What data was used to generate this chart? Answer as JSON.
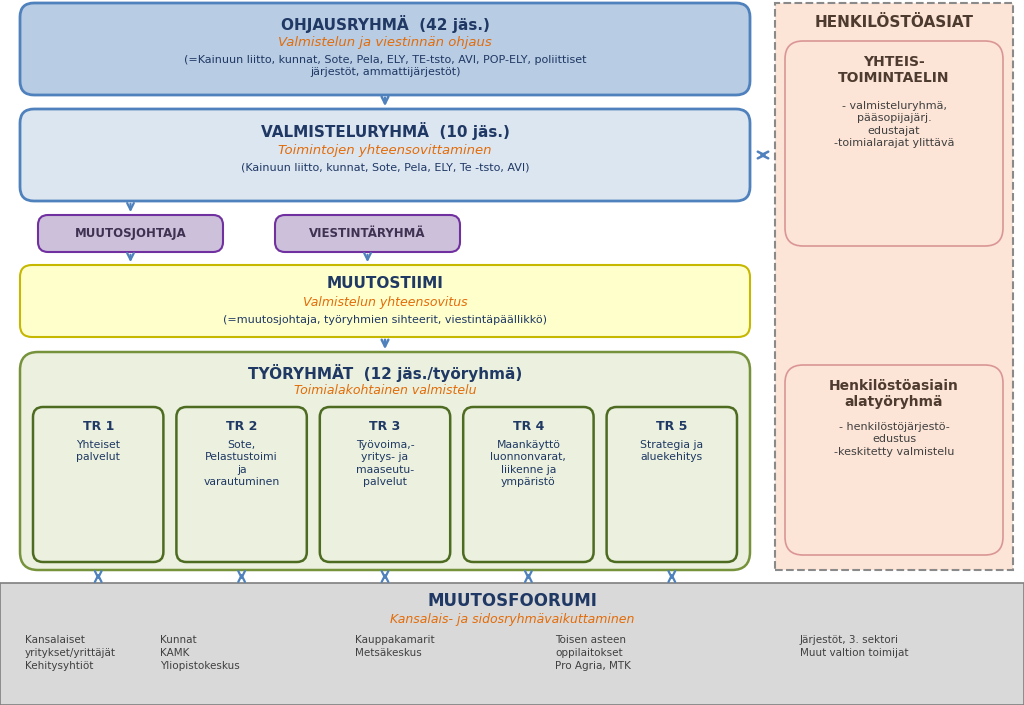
{
  "bg_color": "#ffffff",
  "ohjaus_box": {
    "title": "OHJAUSRYHMÄ",
    "title_suffix": "  (42 jäs.)",
    "subtitle": "Valmistelun ja viestinnän ohjaus",
    "body": "(=Kainuun liitto, kunnat, Sote, Pela, ELY, TE-tsto, AVI, POP-ELY, poliittiset\njärjestöt, ammattijärjestöt)",
    "bg": "#b8cce4",
    "border": "#4f81bd",
    "title_color": "#1f3864",
    "subtitle_color": "#e36c09",
    "body_color": "#1f3864"
  },
  "valmistelu_box": {
    "title": "VALMISTELURYHMÄ",
    "title_suffix": "  (10 jäs.)",
    "subtitle": "Toimintojen yhteensovittaminen",
    "body": "(Kainuun liitto, kunnat, Sote, Pela, ELY, Te -tsto, AVI)",
    "bg": "#dce6f1",
    "border": "#4f81bd",
    "title_color": "#1f3864",
    "subtitle_color": "#e36c09",
    "body_color": "#1f3864"
  },
  "muutosjohtaja_box": {
    "title": "MUUTOSJOHTAJA",
    "bg": "#ccc0da",
    "border": "#7030a0",
    "title_color": "#3f3151"
  },
  "viestinta_box": {
    "title": "VIESTINTÄRYHMÄ",
    "bg": "#ccc0da",
    "border": "#7030a0",
    "title_color": "#3f3151"
  },
  "muutostiimi_box": {
    "title": "MUUTOSTIIMI",
    "subtitle": "Valmistelun yhteensovitus",
    "body": "(=muutosjohtaja, työryhmien sihteerit, viestintäpäällikkö)",
    "bg": "#ffffcc",
    "border": "#c6b800",
    "title_color": "#1f3864",
    "subtitle_color": "#e36c09",
    "body_color": "#1f3864"
  },
  "tyoryhmat_box": {
    "title": "TYÖRYHMÄT",
    "title_suffix": "  (12 jäs./työryhmä)",
    "subtitle": "Toimialakohtainen valmistelu",
    "bg": "#ebf1de",
    "border": "#76933c",
    "title_color": "#1f3864",
    "subtitle_color": "#e36c09"
  },
  "tr_boxes": [
    {
      "header": "TR 1",
      "body": "Yhteiset\npalvelut",
      "bg": "#ebf1de",
      "border": "#4e6b22",
      "header_color": "#1f3864",
      "body_color": "#1f3864"
    },
    {
      "header": "TR 2",
      "body": "Sote,\nPelastustoimi\nja\nvarautuminen",
      "bg": "#ebf1de",
      "border": "#4e6b22",
      "header_color": "#1f3864",
      "body_color": "#1f3864"
    },
    {
      "header": "TR 3",
      "body": "Työvoima,-\nyritys- ja\nmaaseutu-\npalvelut",
      "bg": "#ebf1de",
      "border": "#4e6b22",
      "header_color": "#1f3864",
      "body_color": "#1f3864"
    },
    {
      "header": "TR 4",
      "body": "Maankäyttö\nluonnonvarat,\nliikenne ja\nympäristö",
      "bg": "#ebf1de",
      "border": "#4e6b22",
      "header_color": "#1f3864",
      "body_color": "#1f3864"
    },
    {
      "header": "TR 5",
      "body": "Strategia ja\naluekehitys",
      "bg": "#ebf1de",
      "border": "#4e6b22",
      "header_color": "#1f3864",
      "body_color": "#1f3864"
    }
  ],
  "henkilosto_box": {
    "title": "HENKILÖSTÖASIAT",
    "title_color": "#4e3b30",
    "outer_border": "#8a8a8a",
    "outer_bg": "#fce4d6"
  },
  "yhteis_box": {
    "title": "YHTEIS-\nTOIMINTAELIN",
    "body": "- valmisteluryhmä,\npääsopijajärj.\nedustajat\n-toimialarajat ylittävä",
    "bg": "#fce4d6",
    "border": "#da9694",
    "title_color": "#4e3b30",
    "body_color": "#404040"
  },
  "henk_ala_box": {
    "title": "Henkilöstöasiain\nalatyöryhmä",
    "body": "- henkilöstöjärjestö-\nedustus\n-keskitetty valmistelu",
    "bg": "#fce4d6",
    "border": "#da9694",
    "title_color": "#4e3b30",
    "body_color": "#404040"
  },
  "muutosfoorumi_box": {
    "title": "MUUTOSFOORUMI",
    "subtitle": "Kansalais- ja sidosryhmävaikuttaminen",
    "bg": "#d9d9d9",
    "border": "#7f7f7f",
    "title_color": "#1f3864",
    "subtitle_color": "#e36c09",
    "cols": [
      "Kansalaiset\nyritykset/yrittäjät\nKehitysyhtiöt",
      "Kunnat\nKAMK\nYliopistokeskus",
      "Kauppakamarit\nMetsäkeskus",
      "Toisen asteen\noppilaitokset\nPro Agria, MTK",
      "Järjestöt, 3. sektori\nMuut valtion toimijat"
    ],
    "col_color": "#404040"
  },
  "arrow_color": "#4f81bd",
  "arrow_color_green": "#4f81bd"
}
